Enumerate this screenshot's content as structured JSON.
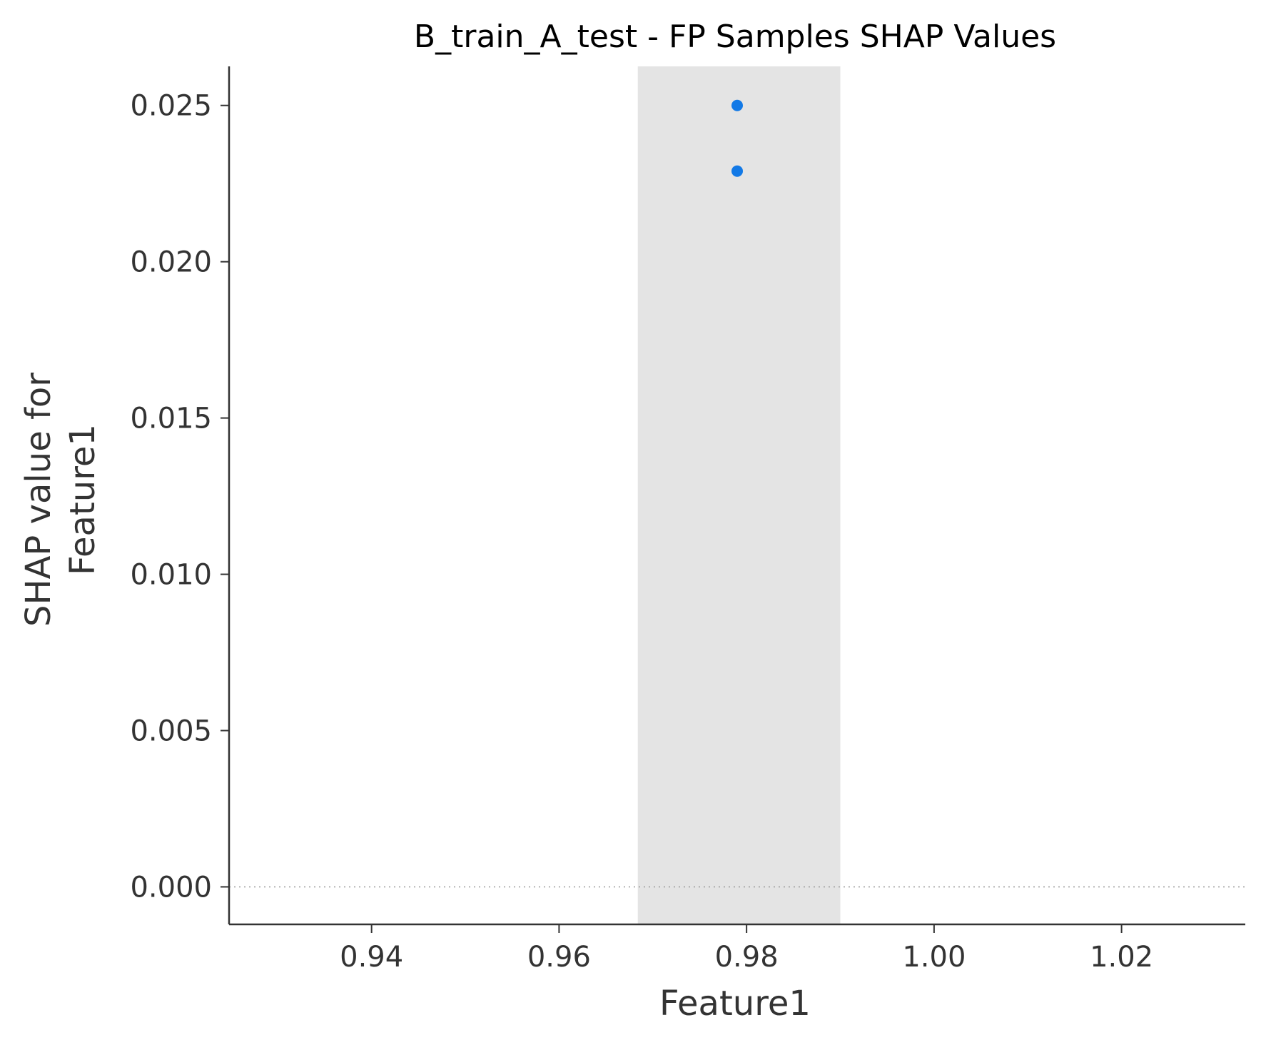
{
  "chart_data": {
    "type": "scatter",
    "title": "B_train_A_test - FP Samples SHAP Values",
    "xlabel": "Feature1",
    "ylabel_lines": [
      "SHAP value for",
      "Feature1"
    ],
    "xlim": [
      0.9248,
      1.0332
    ],
    "ylim": [
      -0.0012,
      0.02625
    ],
    "x_ticks": [
      0.94,
      0.96,
      0.98,
      1.0,
      1.02
    ],
    "x_tick_labels": [
      "0.94",
      "0.96",
      "0.98",
      "1.00",
      "1.02"
    ],
    "y_ticks": [
      0.0,
      0.005,
      0.01,
      0.015,
      0.02,
      0.025
    ],
    "y_tick_labels": [
      "0.000",
      "0.005",
      "0.010",
      "0.015",
      "0.020",
      "0.025"
    ],
    "highlight_band": {
      "x_start": 0.9684,
      "x_end": 0.99,
      "color": "#e4e4e4"
    },
    "zero_line": {
      "y": 0.0,
      "style": "dotted",
      "color": "#999999"
    },
    "points": [
      {
        "x": 0.979,
        "y": 0.025
      },
      {
        "x": 0.979,
        "y": 0.0229
      }
    ],
    "point_color": "#1279e6",
    "axis_color": "#333333",
    "grid": false,
    "legend": "none"
  }
}
